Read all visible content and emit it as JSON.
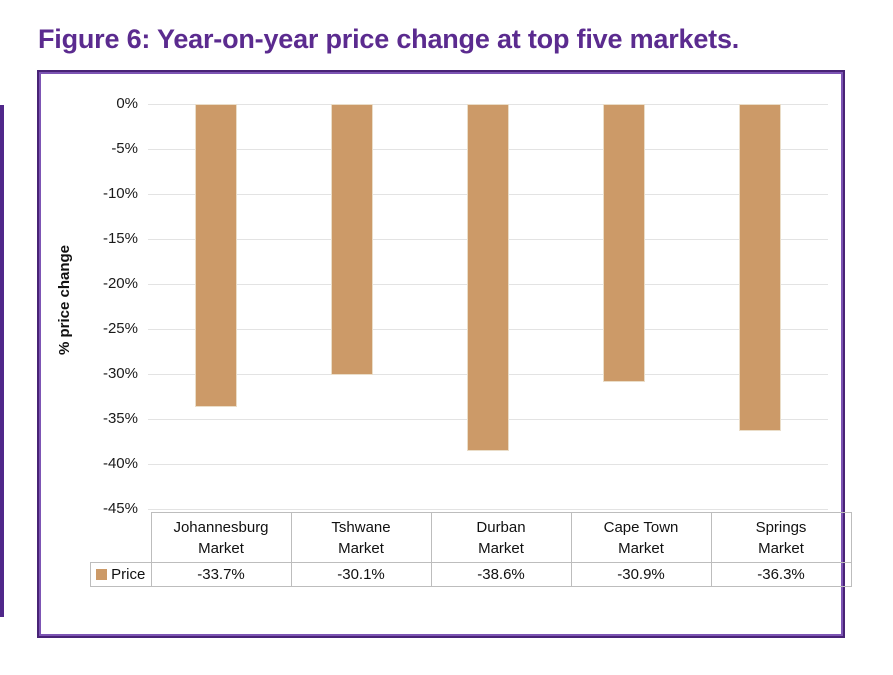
{
  "figure": {
    "title": "Figure 6: Year-on-year price change at top five markets."
  },
  "chart_data": {
    "type": "bar",
    "title": "Figure 6: Year-on-year price change at top five markets.",
    "categories": [
      "Johannesburg Market",
      "Tshwane Market",
      "Durban Market",
      "Cape Town Market",
      "Springs Market"
    ],
    "series": [
      {
        "name": "Price",
        "values": [
          -33.7,
          -30.1,
          -38.6,
          -30.9,
          -36.3
        ],
        "display_values": [
          "-33.7%",
          "-30.1%",
          "-38.6%",
          "-30.9%",
          "-36.3%"
        ]
      }
    ],
    "xlabel": "",
    "ylabel": "% price change",
    "ylim": [
      -45,
      0
    ],
    "ytick_labels": [
      "0%",
      "-5%",
      "-10%",
      "-15%",
      "-20%",
      "-25%",
      "-30%",
      "-35%",
      "-40%",
      "-45%"
    ],
    "grid": true,
    "legend_position": "data-table-left",
    "has_data_table": true
  },
  "colors": {
    "bar": "#cc9a68",
    "title": "#5b2b8f",
    "frame_border": "#482376",
    "gridline": "#e3e3e3",
    "table_border": "#bdbdbd"
  }
}
